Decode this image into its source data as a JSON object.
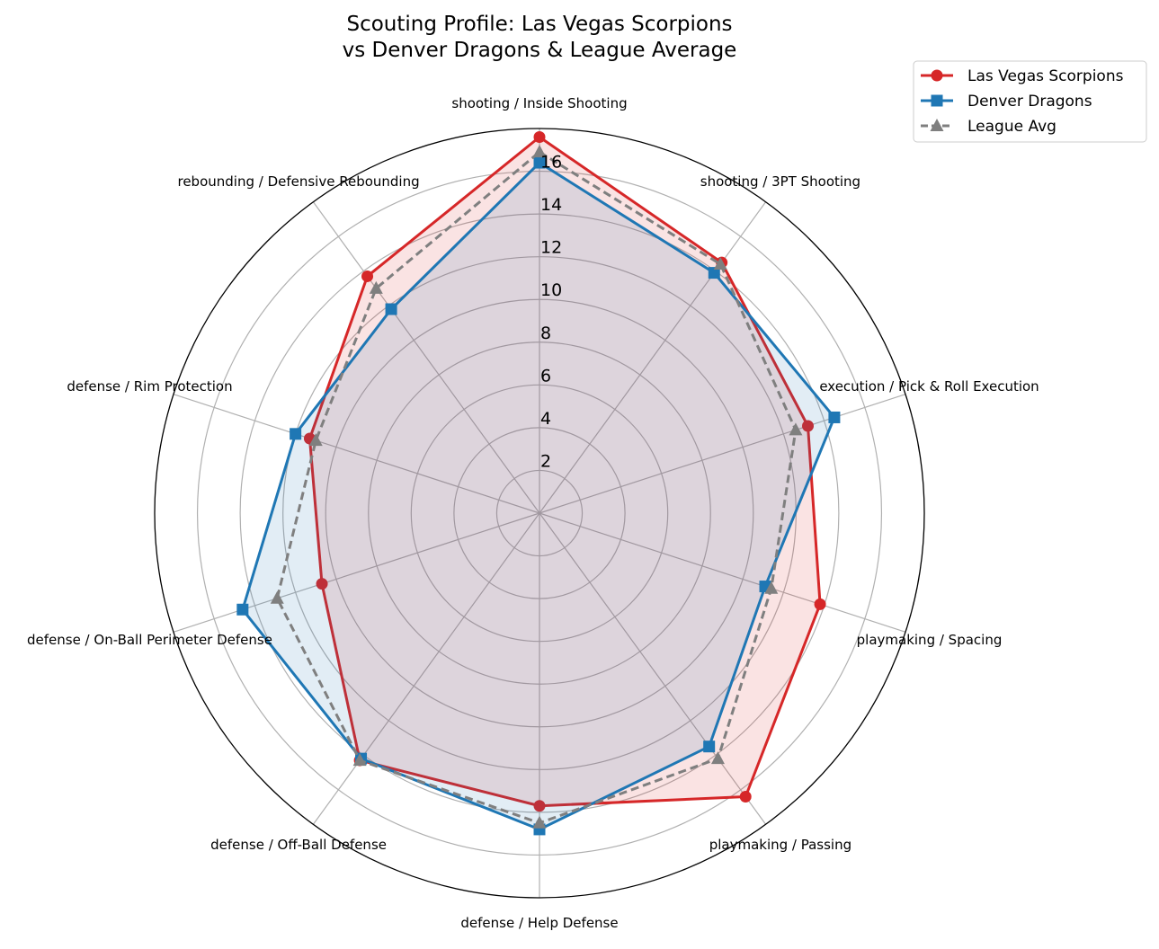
{
  "chart_data": {
    "type": "radar",
    "title": "Scouting Profile: Las Vegas Scorpions\nvs Denver Dragons & League Average",
    "categories": [
      "shooting / Inside Shooting",
      "shooting / 3PT Shooting",
      "execution / Pick & Roll Execution",
      "playmaking / Spacing",
      "playmaking / Passing",
      "defense / Help Defense",
      "defense / Off-Ball Defense",
      "defense / On-Ball Perimeter Defense",
      "defense / Rim Protection",
      "rebounding / Defensive Rebounding"
    ],
    "rlim": [
      0,
      18
    ],
    "rticks": [
      2,
      4,
      6,
      8,
      10,
      12,
      14,
      16
    ],
    "grid": true,
    "legend": "top-right",
    "series": [
      {
        "name": "Las Vegas Scorpions",
        "color": "#d62728",
        "marker": "circle",
        "linestyle": "solid",
        "fill": true,
        "values": [
          17.6,
          14.5,
          13.2,
          13.8,
          16.4,
          13.7,
          14.3,
          10.7,
          11.3,
          13.7
        ]
      },
      {
        "name": "Denver Dragons",
        "color": "#1f77b4",
        "marker": "square",
        "linestyle": "solid",
        "fill": true,
        "values": [
          16.4,
          13.9,
          14.5,
          11.1,
          13.5,
          14.8,
          14.2,
          14.6,
          12.0,
          11.8
        ]
      },
      {
        "name": "League Avg",
        "color": "#7f7f7f",
        "marker": "triangle",
        "linestyle": "dashed",
        "fill": false,
        "values": [
          16.9,
          14.4,
          12.6,
          11.4,
          14.2,
          14.5,
          14.3,
          12.9,
          11.0,
          13.0
        ]
      }
    ]
  }
}
